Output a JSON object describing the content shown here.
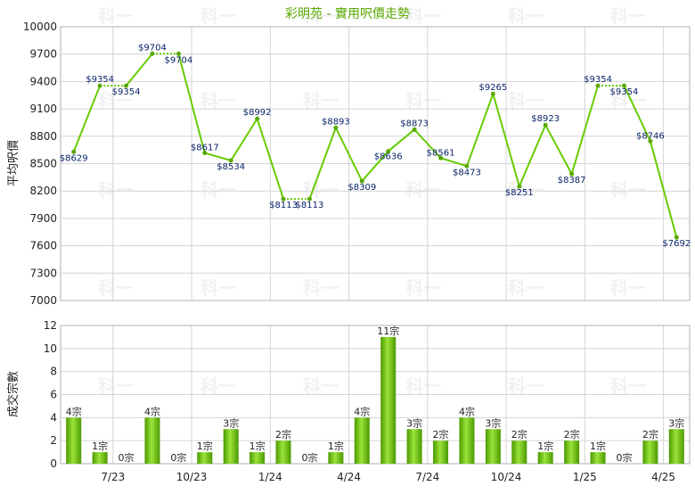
{
  "title": "彩明苑 - 實用呎價走勢",
  "chart_data": [
    {
      "type": "line",
      "ylabel": "平均呎價",
      "ylim": [
        7000,
        10000
      ],
      "yticks": [
        7000,
        7300,
        7600,
        7900,
        8200,
        8500,
        8800,
        9100,
        9400,
        9700,
        10000
      ],
      "series": [
        {
          "values": [
            8629,
            9354,
            9354,
            9704,
            9704,
            8617,
            8534,
            8992,
            8113,
            8113,
            8893,
            8309,
            8636,
            8873,
            8561,
            8473,
            9265,
            8251,
            8923,
            8387,
            9354,
            9354,
            8746,
            7692
          ],
          "labels": [
            "$8629",
            "$9354",
            "$9354",
            "$9704",
            "$9704",
            "$8617",
            "$8534",
            "$8992",
            "$8113",
            "$8113",
            "$8893",
            "$8309",
            "$8636",
            "$8873",
            "$8561",
            "$8473",
            "$9265",
            "$8251",
            "$8923",
            "$8387",
            "$9354",
            "$9354",
            "$8746",
            "$7692"
          ],
          "carried_over": [
            false,
            false,
            true,
            false,
            true,
            false,
            false,
            false,
            false,
            true,
            false,
            false,
            false,
            false,
            false,
            false,
            false,
            false,
            false,
            false,
            false,
            true,
            false,
            false
          ]
        }
      ],
      "color": "#66cc00",
      "grid": true
    },
    {
      "type": "bar",
      "ylabel": "成交宗數",
      "ylim": [
        0,
        12
      ],
      "yticks": [
        0,
        2,
        4,
        6,
        8,
        10,
        12
      ],
      "values": [
        4,
        1,
        0,
        4,
        0,
        1,
        3,
        1,
        2,
        0,
        1,
        4,
        11,
        3,
        2,
        4,
        3,
        2,
        1,
        2,
        1,
        0,
        2,
        3
      ],
      "labels": [
        "4宗",
        "1宗",
        "0宗",
        "4宗",
        "0宗",
        "1宗",
        "3宗",
        "1宗",
        "2宗",
        "0宗",
        "1宗",
        "4宗",
        "11宗",
        "3宗",
        "2宗",
        "4宗",
        "3宗",
        "2宗",
        "1宗",
        "2宗",
        "1宗",
        "0宗",
        "2宗",
        "3宗"
      ],
      "color": "#66cc00",
      "grid": true
    }
  ],
  "x_axis": {
    "tick_labels": [
      "7/23",
      "10/23",
      "1/24",
      "4/24",
      "7/24",
      "10/24",
      "1/25",
      "4/25"
    ],
    "tick_label_positions": [
      2,
      5,
      8,
      11,
      14,
      17,
      20,
      23
    ]
  },
  "watermark": "科一"
}
